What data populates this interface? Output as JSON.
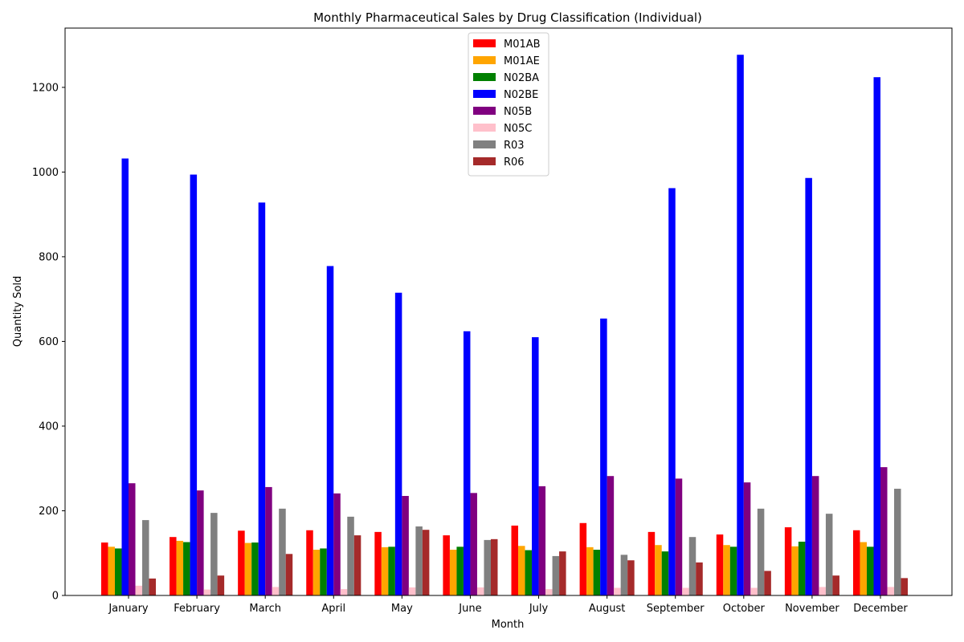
{
  "chart_data": {
    "type": "bar",
    "title": "Monthly Pharmaceutical Sales by Drug Classification (Individual)",
    "xlabel": "Month",
    "ylabel": "Quantity Sold",
    "ylim": [
      0,
      1340
    ],
    "yticks": [
      0,
      200,
      400,
      600,
      800,
      1000,
      1200
    ],
    "grid": false,
    "legend_position": "top-center",
    "categories": [
      "January",
      "February",
      "March",
      "April",
      "May",
      "June",
      "July",
      "August",
      "September",
      "October",
      "November",
      "December"
    ],
    "series": [
      {
        "name": "M01AB",
        "color": "#ff0000",
        "values": [
          125,
          138,
          153,
          154,
          150,
          142,
          165,
          171,
          150,
          144,
          161,
          154
        ]
      },
      {
        "name": "M01AE",
        "color": "#ffa500",
        "values": [
          115,
          129,
          124,
          108,
          114,
          108,
          117,
          114,
          119,
          119,
          116,
          126
        ]
      },
      {
        "name": "N02BA",
        "color": "#008000",
        "values": [
          111,
          126,
          125,
          111,
          115,
          115,
          107,
          108,
          104,
          115,
          127,
          115
        ]
      },
      {
        "name": "N02BE",
        "color": "#0000ff",
        "values": [
          1032,
          994,
          928,
          778,
          715,
          624,
          610,
          654,
          962,
          1277,
          986,
          1224
        ]
      },
      {
        "name": "N05B",
        "color": "#800080",
        "values": [
          265,
          248,
          256,
          241,
          235,
          242,
          258,
          282,
          276,
          267,
          282,
          303
        ]
      },
      {
        "name": "N05C",
        "color": "#ffc0cb",
        "values": [
          23,
          14,
          20,
          15,
          19,
          19,
          15,
          18,
          18,
          18,
          20,
          20
        ]
      },
      {
        "name": "R03",
        "color": "#808080",
        "values": [
          178,
          195,
          205,
          186,
          163,
          131,
          93,
          96,
          138,
          205,
          193,
          252
        ]
      },
      {
        "name": "R06",
        "color": "#a52a2a",
        "values": [
          40,
          47,
          98,
          142,
          155,
          133,
          104,
          83,
          78,
          58,
          47,
          41
        ]
      }
    ]
  }
}
